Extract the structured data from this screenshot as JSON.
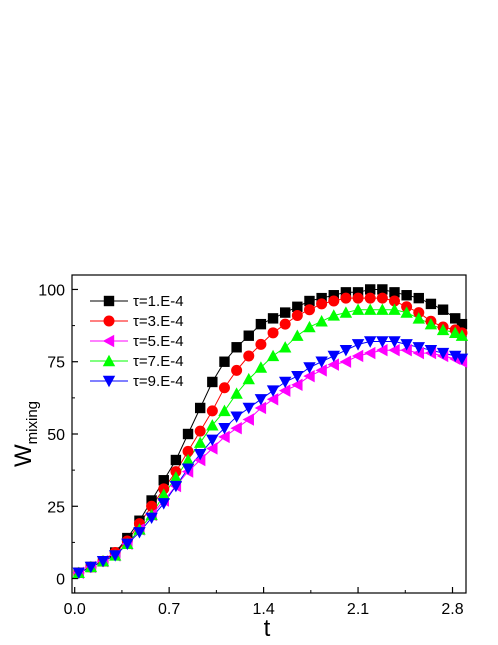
{
  "chart_data": {
    "type": "line",
    "xlabel": "t",
    "ylabel_main": "W",
    "ylabel_sub": "mixing",
    "xlim": [
      -0.02,
      2.9
    ],
    "ylim": [
      -5,
      105
    ],
    "x_ticks": [
      0.0,
      0.7,
      1.4,
      2.1,
      2.8
    ],
    "x_tick_labels": [
      "0.0",
      "0.7",
      "1.4",
      "2.1",
      "2.8"
    ],
    "y_ticks": [
      0,
      25,
      50,
      75,
      100
    ],
    "y_tick_labels": [
      "0",
      "25",
      "50",
      "75",
      "100"
    ],
    "legend_position": "top-left",
    "x": [
      0.03,
      0.12,
      0.21,
      0.3,
      0.39,
      0.48,
      0.57,
      0.66,
      0.75,
      0.84,
      0.93,
      1.02,
      1.11,
      1.2,
      1.29,
      1.38,
      1.47,
      1.56,
      1.65,
      1.74,
      1.83,
      1.92,
      2.01,
      2.1,
      2.19,
      2.28,
      2.37,
      2.46,
      2.55,
      2.64,
      2.73,
      2.82,
      2.87
    ],
    "series": [
      {
        "name": "τ=1.E-4",
        "color": "#000000",
        "marker": "square",
        "values": [
          2,
          4,
          6,
          9,
          14,
          20,
          27,
          34,
          41,
          50,
          59,
          68,
          75,
          80,
          84,
          88,
          90,
          92,
          94,
          96,
          97,
          98,
          99,
          99,
          100,
          100,
          99,
          98,
          97,
          95,
          93,
          90,
          88
        ]
      },
      {
        "name": "τ=3.E-4",
        "color": "#ff0000",
        "marker": "circle",
        "values": [
          2,
          4,
          6,
          9,
          13,
          19,
          25,
          31,
          37,
          44,
          51,
          58,
          66,
          72,
          77,
          81,
          85,
          88,
          91,
          93,
          95,
          96,
          97,
          97,
          97,
          97,
          96,
          94,
          92,
          89,
          87,
          86,
          85
        ]
      },
      {
        "name": "τ=5.E-4",
        "color": "#ff00ff",
        "marker": "triangle-left",
        "values": [
          2,
          4,
          6,
          8,
          12,
          17,
          22,
          27,
          32,
          37,
          41,
          45,
          49,
          52,
          55,
          59,
          62,
          65,
          67,
          70,
          72,
          74,
          75,
          77,
          78,
          79,
          79,
          79,
          78,
          78,
          77,
          76,
          75
        ]
      },
      {
        "name": "τ=7.E-4",
        "color": "#00ff00",
        "marker": "triangle-up",
        "values": [
          2,
          4,
          6,
          8,
          12,
          17,
          22,
          29,
          35,
          41,
          47,
          53,
          58,
          64,
          69,
          73,
          77,
          80,
          84,
          87,
          89,
          91,
          92,
          93,
          93,
          93,
          93,
          92,
          90,
          88,
          86,
          85,
          84
        ]
      },
      {
        "name": "τ=9.E-4",
        "color": "#0000ff",
        "marker": "triangle-down",
        "values": [
          2,
          4,
          6,
          8,
          12,
          16,
          21,
          26,
          32,
          38,
          43,
          48,
          52,
          56,
          59,
          62,
          65,
          68,
          70,
          73,
          75,
          77,
          79,
          81,
          82,
          82,
          82,
          81,
          80,
          79,
          78,
          77,
          76
        ]
      }
    ]
  }
}
